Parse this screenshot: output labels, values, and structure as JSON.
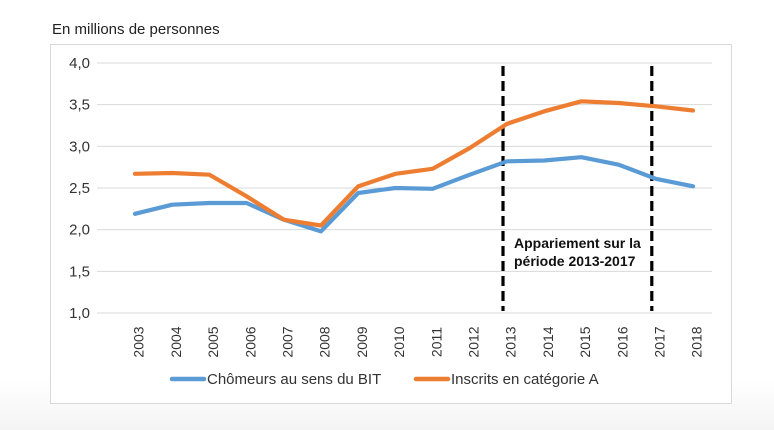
{
  "unit_label": "En millions de personnes",
  "chart_data": {
    "type": "line",
    "title": "",
    "xlabel": "",
    "ylabel": "",
    "ylim": [
      1.0,
      4.0
    ],
    "yticks": [
      "1,0",
      "1,5",
      "2,0",
      "2,5",
      "3,0",
      "3,5",
      "4,0"
    ],
    "yticks_values": [
      1.0,
      1.5,
      2.0,
      2.5,
      3.0,
      3.5,
      4.0
    ],
    "categories": [
      "2003",
      "2004",
      "2005",
      "2006",
      "2007",
      "2008",
      "2009",
      "2010",
      "2011",
      "2012",
      "2013",
      "2014",
      "2015",
      "2016",
      "2017",
      "2018"
    ],
    "series": [
      {
        "name": "Chômeurs au sens du BIT",
        "color": "#5B9BD5",
        "values": [
          2.19,
          2.3,
          2.32,
          2.32,
          2.12,
          1.98,
          2.44,
          2.5,
          2.49,
          2.66,
          2.82,
          2.83,
          2.87,
          2.78,
          2.61,
          2.52
        ]
      },
      {
        "name": "Inscrits en catégorie A",
        "color": "#ED7D31",
        "values": [
          2.67,
          2.68,
          2.66,
          2.4,
          2.12,
          2.05,
          2.52,
          2.67,
          2.73,
          2.98,
          3.27,
          3.42,
          3.54,
          3.52,
          3.48,
          3.43
        ]
      }
    ],
    "vertical_markers": [
      {
        "at": "2013",
        "style": "dashed",
        "color": "#000000"
      },
      {
        "at": "2017",
        "style": "dashed",
        "color": "#000000"
      }
    ],
    "annotation": {
      "line1": "Appariement  sur la",
      "line2": "période 2013-2017",
      "at": "2013"
    },
    "grid": "horizontal",
    "legend": "bottom"
  }
}
